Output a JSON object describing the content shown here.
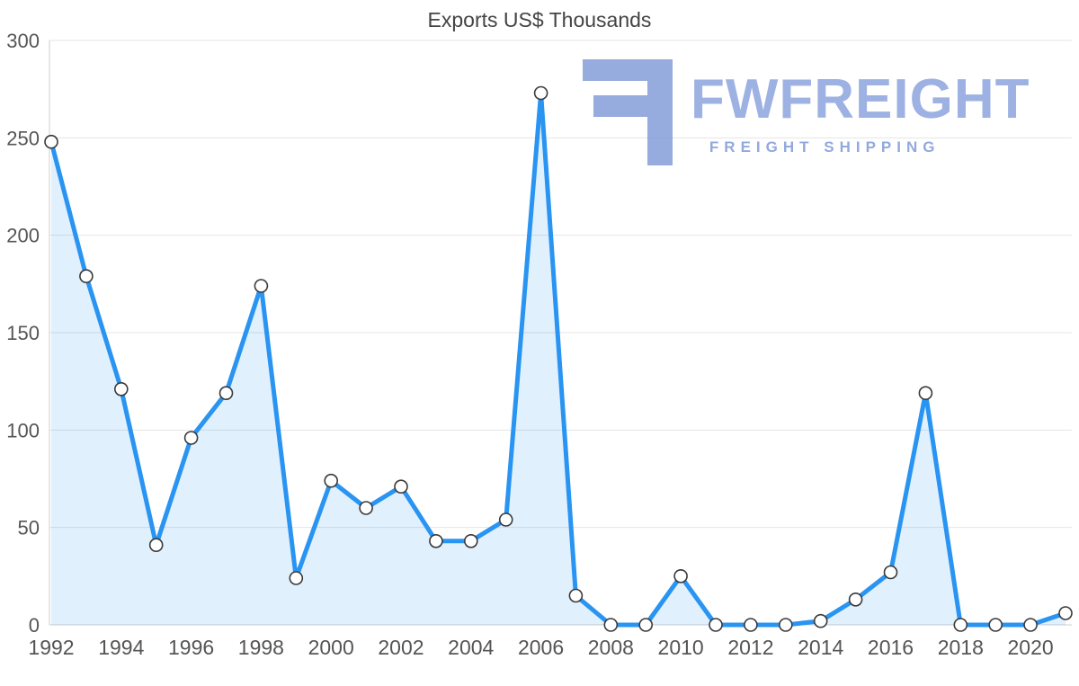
{
  "chart_data": {
    "type": "area",
    "title": "Exports US$ Thousands",
    "series_name": "Exports",
    "x": [
      1992,
      1993,
      1994,
      1995,
      1996,
      1997,
      1998,
      1999,
      2000,
      2001,
      2002,
      2003,
      2004,
      2005,
      2006,
      2007,
      2008,
      2009,
      2010,
      2011,
      2012,
      2013,
      2014,
      2015,
      2016,
      2017,
      2018,
      2019,
      2020,
      2021
    ],
    "values": [
      248,
      179,
      121,
      41,
      96,
      119,
      174,
      24,
      74,
      60,
      71,
      43,
      43,
      54,
      273,
      15,
      0,
      0,
      25,
      0,
      0,
      0,
      2,
      13,
      27,
      119,
      0,
      0,
      0,
      6
    ],
    "ylim": [
      0,
      300
    ],
    "ytick_step": 50,
    "yticks": [
      0,
      50,
      100,
      150,
      200,
      250,
      300
    ],
    "xticks": [
      1992,
      1994,
      1996,
      1998,
      2000,
      2002,
      2004,
      2006,
      2008,
      2010,
      2012,
      2014,
      2016,
      2018,
      2020
    ],
    "xlabel": "",
    "ylabel": "",
    "grid": "horizontal",
    "legend": "none"
  },
  "colors": {
    "line": "#2994f1",
    "area_fill": "#2994f1",
    "area_fill_opacity": 0.14,
    "marker_fill": "#ffffff",
    "marker_stroke": "#3a3a3a",
    "grid": "#e4e4e4",
    "axis_line": "#cfcfcf",
    "axis_text": "#555555",
    "title_text": "#444444",
    "logo_icon": "#7d97d6",
    "logo_name": "#9db1e3",
    "logo_tagline": "#93a9de"
  },
  "logo": {
    "name": "FWFREIGHT",
    "tagline": "FREIGHT SHIPPING"
  }
}
